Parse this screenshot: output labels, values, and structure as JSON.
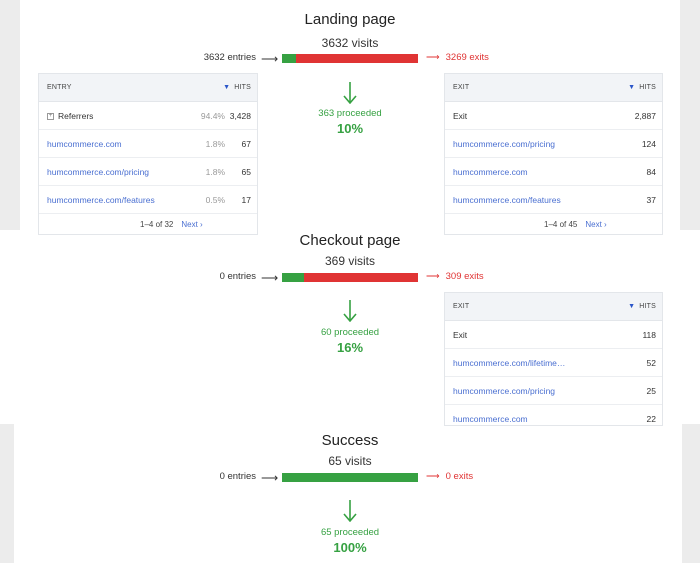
{
  "landing": {
    "title": "Landing page",
    "visits": "3632 visits",
    "entries": "3632 entries",
    "exits": "3269 exits",
    "proceeded": "363 proceeded",
    "percent": "10%",
    "proceed_fraction": 0.1,
    "entry_table": {
      "col_left": "ENTRY",
      "col_right": "HITS",
      "rows": [
        {
          "label": "Referrers",
          "pct": "94.4%",
          "hits": "3,428"
        },
        {
          "label": "humcommerce.com",
          "pct": "1.8%",
          "hits": "67"
        },
        {
          "label": "humcommerce.com/pricing",
          "pct": "1.8%",
          "hits": "65"
        },
        {
          "label": "humcommerce.com/features",
          "pct": "0.5%",
          "hits": "17"
        }
      ],
      "pager": "1–4 of 32",
      "next": "Next ›"
    },
    "exit_table": {
      "col_left": "EXIT",
      "col_right": "HITS",
      "rows": [
        {
          "label": "Exit",
          "hits": "2,887"
        },
        {
          "label": "humcommerce.com/pricing",
          "hits": "124"
        },
        {
          "label": "humcommerce.com",
          "hits": "84"
        },
        {
          "label": "humcommerce.com/features",
          "hits": "37"
        }
      ],
      "pager": "1–4 of 45",
      "next": "Next ›"
    }
  },
  "checkout": {
    "title": "Checkout page",
    "visits": "369 visits",
    "entries": "0 entries",
    "exits": "309 exits",
    "proceeded": "60 proceeded",
    "percent": "16%",
    "proceed_fraction": 0.16,
    "exit_table": {
      "col_left": "EXIT",
      "col_right": "HITS",
      "rows": [
        {
          "label": "Exit",
          "hits": "118"
        },
        {
          "label": "humcommerce.com/lifetime…",
          "hits": "52"
        },
        {
          "label": "humcommerce.com/pricing",
          "hits": "25"
        },
        {
          "label": "humcommerce.com",
          "hits": "22"
        }
      ]
    }
  },
  "success": {
    "title": "Success",
    "visits": "65 visits",
    "entries": "0 entries",
    "exits": "0 exits",
    "proceeded": "65 proceeded",
    "percent": "100%",
    "proceed_fraction": 1.0
  },
  "colors": {
    "green": "#36a142",
    "red": "#e03434",
    "link": "#4a6fd1"
  },
  "icons": {
    "entry_arrow": "arrow-right-icon",
    "exit_arrow": "arrow-right-icon",
    "proceed_arrow": "arrow-down-icon",
    "sort": "sort-desc-icon",
    "expand": "expand-plus-icon"
  }
}
